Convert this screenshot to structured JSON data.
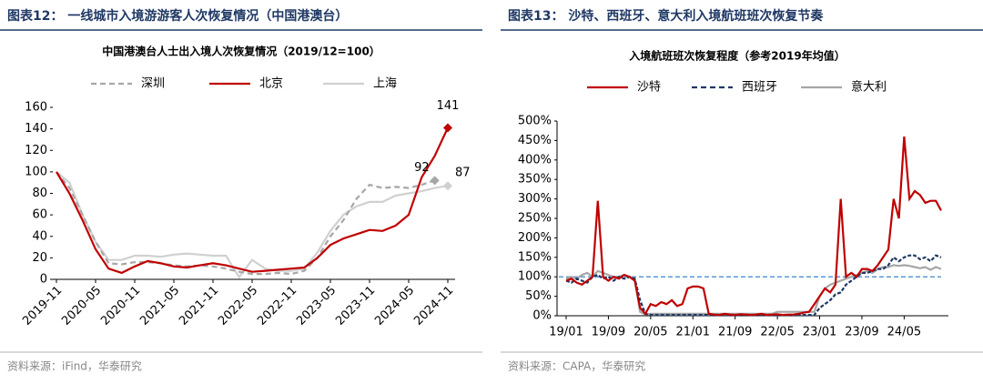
{
  "chart_data": [
    {
      "type": "line",
      "header": "图表12： 一线城市入境游游客人次恢复情况（中国港澳台）",
      "title": "中国港澳台人士出入境人次恢复情况（2019/12=100）",
      "source": "资料来源：iFind，华泰研究",
      "categories": [
        "2019-11",
        null,
        null,
        "2020-05",
        null,
        null,
        "2020-11",
        null,
        null,
        "2021-05",
        null,
        null,
        "2021-11",
        null,
        null,
        "2022-05",
        null,
        null,
        "2022-11",
        null,
        null,
        "2023-05",
        null,
        null,
        "2023-11",
        null,
        null,
        "2024-05",
        null,
        null,
        "2024-11"
      ],
      "series": [
        {
          "name": "深圳",
          "color": "#a6a6a6",
          "dash": true,
          "label_last": true,
          "values": [
            100,
            85,
            60,
            35,
            15,
            14,
            16,
            16,
            15,
            13,
            12,
            13,
            12,
            10,
            7,
            5,
            5,
            6,
            5,
            8,
            20,
            40,
            55,
            75,
            88,
            85,
            86,
            85,
            88,
            92,
            null
          ]
        },
        {
          "name": "北京",
          "color": "#c00000",
          "dash": false,
          "label_last": true,
          "values": [
            100,
            80,
            55,
            28,
            10,
            6,
            12,
            17,
            15,
            12,
            11,
            13,
            15,
            13,
            10,
            7,
            8,
            9,
            10,
            11,
            20,
            32,
            38,
            42,
            46,
            45,
            50,
            60,
            95,
            115,
            141
          ]
        },
        {
          "name": "上海",
          "color": "#d0d0d0",
          "dash": false,
          "label_last": true,
          "values": [
            100,
            90,
            60,
            35,
            18,
            18,
            22,
            22,
            21,
            23,
            24,
            23,
            22,
            22,
            2,
            18,
            10,
            8,
            8,
            10,
            25,
            45,
            60,
            68,
            72,
            72,
            78,
            80,
            82,
            85,
            87
          ]
        }
      ],
      "ylim": [
        0,
        160
      ],
      "yticks": [
        0,
        20,
        40,
        60,
        80,
        100,
        120,
        140,
        160
      ],
      "xlabel_rotate": true
    },
    {
      "type": "line",
      "header": "图表13： 沙特、西班牙、意大利入境航班班次恢复节奏",
      "title": "入境航班班次恢复程度（参考2019年均值）",
      "source": "资料来源：CAPA，华泰研究",
      "categories": [
        "19/01",
        null,
        null,
        null,
        null,
        null,
        null,
        null,
        "19/09",
        null,
        null,
        null,
        null,
        null,
        null,
        null,
        "20/05",
        null,
        null,
        null,
        null,
        null,
        null,
        null,
        "21/01",
        null,
        null,
        null,
        null,
        null,
        null,
        null,
        "21/09",
        null,
        null,
        null,
        null,
        null,
        null,
        null,
        "22/05",
        null,
        null,
        null,
        null,
        null,
        null,
        null,
        "23/01",
        null,
        null,
        null,
        null,
        null,
        null,
        null,
        "23/09",
        null,
        null,
        null,
        null,
        null,
        null,
        null,
        "24/05",
        null,
        null,
        null,
        null,
        null,
        null,
        null
      ],
      "series": [
        {
          "name": "沙特",
          "color": "#c00000",
          "dash": false,
          "values": [
            90,
            95,
            85,
            80,
            90,
            100,
            295,
            100,
            90,
            100,
            95,
            105,
            100,
            90,
            20,
            5,
            30,
            25,
            35,
            30,
            40,
            25,
            30,
            70,
            75,
            75,
            70,
            5,
            3,
            2,
            5,
            3,
            2,
            4,
            3,
            2,
            3,
            5,
            2,
            3,
            4,
            2,
            3,
            3,
            5,
            8,
            10,
            30,
            50,
            70,
            60,
            80,
            300,
            100,
            110,
            100,
            120,
            120,
            115,
            130,
            150,
            170,
            300,
            250,
            460,
            300,
            320,
            310,
            290,
            295,
            295,
            270
          ]
        },
        {
          "name": "西班牙",
          "color": "#1f3864",
          "dash": true,
          "values": [
            90,
            85,
            95,
            90,
            85,
            100,
            105,
            95,
            100,
            90,
            100,
            95,
            100,
            95,
            40,
            5,
            2,
            2,
            2,
            2,
            2,
            2,
            2,
            2,
            2,
            2,
            2,
            2,
            2,
            2,
            2,
            2,
            2,
            2,
            2,
            2,
            2,
            2,
            2,
            2,
            2,
            2,
            2,
            2,
            2,
            2,
            2,
            2,
            20,
            30,
            40,
            55,
            60,
            80,
            90,
            100,
            110,
            110,
            115,
            120,
            120,
            130,
            150,
            140,
            150,
            155,
            155,
            145,
            150,
            140,
            155,
            150
          ]
        },
        {
          "name": "意大利",
          "color": "#a6a6a6",
          "dash": false,
          "values": [
            95,
            100,
            95,
            105,
            110,
            100,
            115,
            110,
            105,
            100,
            100,
            105,
            100,
            95,
            10,
            3,
            5,
            5,
            5,
            5,
            5,
            5,
            5,
            5,
            5,
            5,
            5,
            5,
            5,
            5,
            5,
            5,
            5,
            5,
            5,
            5,
            5,
            5,
            5,
            5,
            10,
            10,
            10,
            10,
            10,
            10,
            10,
            10,
            50,
            70,
            80,
            85,
            90,
            95,
            100,
            105,
            110,
            115,
            110,
            120,
            125,
            125,
            130,
            128,
            130,
            128,
            125,
            122,
            125,
            118,
            125,
            120
          ]
        }
      ],
      "reference": {
        "value": 100,
        "color": "#5b9bd5"
      },
      "ylim": [
        0,
        500
      ],
      "yticks": [
        {
          "value": 0,
          "label": "0%"
        },
        {
          "value": 50,
          "label": "50%"
        },
        {
          "value": 100,
          "label": "100%"
        },
        {
          "value": 150,
          "label": "150%"
        },
        {
          "value": 200,
          "label": "200%"
        },
        {
          "value": 250,
          "label": "250%"
        },
        {
          "value": 300,
          "label": "300%"
        },
        {
          "value": 350,
          "label": "350%"
        },
        {
          "value": 400,
          "label": "400%"
        },
        {
          "value": 450,
          "label": "450%"
        },
        {
          "value": 500,
          "label": "500%"
        }
      ],
      "xlabel_rotate": false
    }
  ]
}
